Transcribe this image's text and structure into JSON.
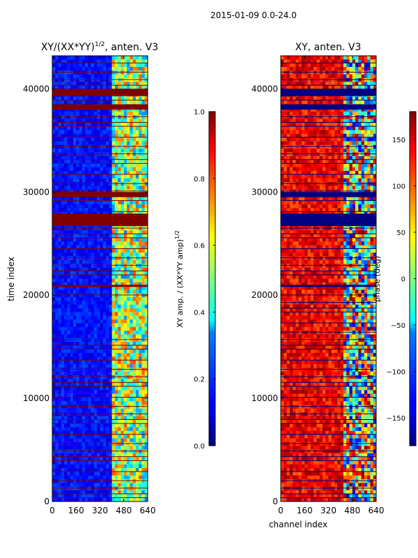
{
  "figure": {
    "suptitle": "2015-01-09 0.0-24.0"
  },
  "chart_data": [
    {
      "type": "heatmap",
      "title": "XY/(XX*YY)",
      "title_exponent": "1/2",
      "title_suffix": ", anten. V3",
      "xlabel": "",
      "ylabel": "time index",
      "xlim": [
        0,
        640
      ],
      "ylim": [
        0,
        43200
      ],
      "xticks": [
        0,
        160,
        320,
        480,
        640
      ],
      "yticks": [
        0,
        10000,
        20000,
        30000,
        40000
      ],
      "colorbar": {
        "label": "XY amp. / (XX*YY amp)",
        "label_exponent": "1/2",
        "range": [
          0,
          1
        ],
        "ticks": [
          0.0,
          0.2,
          0.4,
          0.6,
          0.8,
          1.0
        ],
        "tick_labels": [
          "0.0",
          "0.2",
          "0.4",
          "0.6",
          "0.8",
          "1.0"
        ],
        "colormap": "jet"
      },
      "description_values": {
        "low_channel_amplitude": 0.12,
        "high_channel_amplitude_range": [
          0.3,
          0.8
        ],
        "flagged_time_bands": [
          [
            38000,
            38500
          ],
          [
            39300,
            40000
          ],
          [
            29500,
            30000
          ],
          [
            26700,
            27900
          ],
          [
            20800,
            21000
          ]
        ]
      }
    },
    {
      "type": "heatmap",
      "title": "XY, anten. V3",
      "xlabel": "channel index",
      "ylabel": "",
      "xlim": [
        0,
        640
      ],
      "ylim": [
        0,
        43200
      ],
      "xticks": [
        0,
        160,
        320,
        480,
        640
      ],
      "yticks": [
        0,
        10000,
        20000,
        30000,
        40000
      ],
      "colorbar": {
        "label": "phase (deg)",
        "range": [
          -180,
          180
        ],
        "ticks": [
          -150,
          -100,
          -50,
          0,
          50,
          100,
          150
        ],
        "tick_labels": [
          "−150",
          "−100",
          "−50",
          "0",
          "50",
          "100",
          "150"
        ],
        "colormap": "jet"
      },
      "description_values": {
        "typical_phase_deg": [
          110,
          170
        ],
        "flagged_phase_deg": -180,
        "flagged_time_bands": [
          [
            38000,
            38500
          ],
          [
            39300,
            40000
          ],
          [
            29500,
            30000
          ],
          [
            26700,
            27900
          ],
          [
            20800,
            21000
          ]
        ]
      }
    }
  ]
}
